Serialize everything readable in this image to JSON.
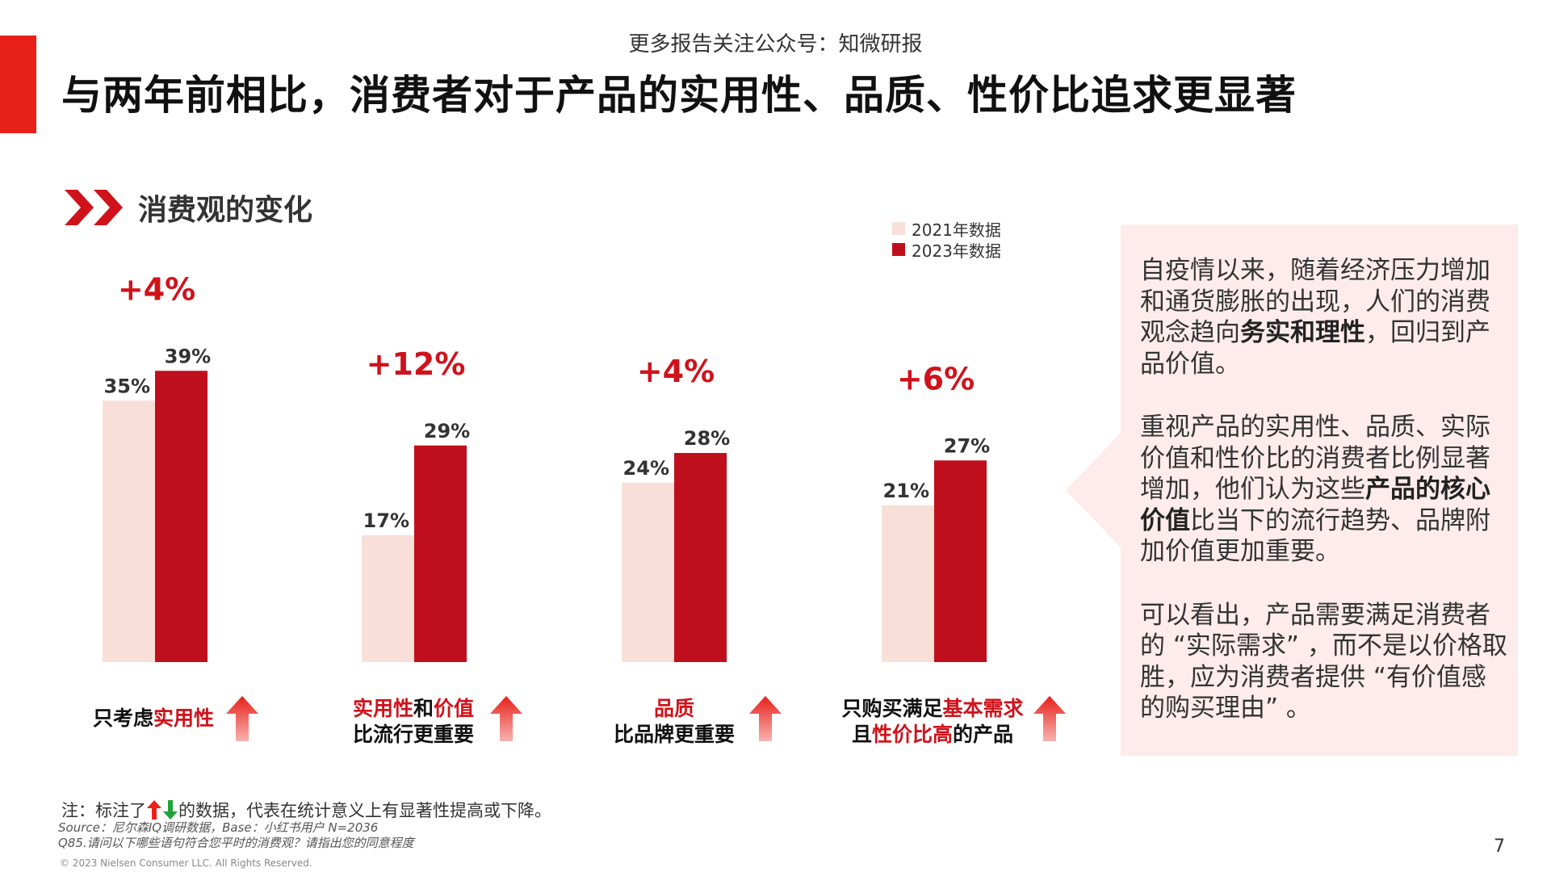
{
  "header": {
    "top_note": "更多报告关注公众号：知微研报",
    "title": "与两年前相比，消费者对于产品的实用性、品质、性价比追求更显著"
  },
  "section": {
    "title": "消费观的变化"
  },
  "colors": {
    "accent": "#e8201a",
    "series_2021": "#f8e0d8",
    "series_2023": "#c00f1c",
    "highlight": "#d0121b",
    "panel_bg": "#fdeceb"
  },
  "chart_data": {
    "type": "bar",
    "categories": [
      "只考虑实用性",
      "实用性和价值比流行更重要",
      "品质比品牌更重要",
      "只购买满足基本需求且性价比高的产品"
    ],
    "series": [
      {
        "name": "2021年数据",
        "values": [
          35,
          17,
          24,
          21
        ]
      },
      {
        "name": "2023年数据",
        "values": [
          39,
          29,
          28,
          27
        ]
      }
    ],
    "value_labels": {
      "2021": [
        "35%",
        "17%",
        "24%",
        "21%"
      ],
      "2023": [
        "39%",
        "29%",
        "28%",
        "27%"
      ]
    },
    "changes": [
      "+4%",
      "+12%",
      "+4%",
      "+6%"
    ],
    "ylim": [
      0,
      50
    ],
    "legend_position": "top-right",
    "grid": false
  },
  "category_labels": [
    {
      "lines": [
        [
          {
            "t": "只考虑",
            "hl": false
          },
          {
            "t": "实用性",
            "hl": true
          }
        ]
      ]
    },
    {
      "lines": [
        [
          {
            "t": "实用性",
            "hl": true
          },
          {
            "t": "和",
            "hl": false
          },
          {
            "t": "价值",
            "hl": true
          }
        ],
        [
          {
            "t": "比流行更重要",
            "hl": false
          }
        ]
      ]
    },
    {
      "lines": [
        [
          {
            "t": "品质",
            "hl": true
          }
        ],
        [
          {
            "t": "比品牌更重要",
            "hl": false
          }
        ]
      ]
    },
    {
      "lines": [
        [
          {
            "t": "只购买满足",
            "hl": false
          },
          {
            "t": "基本需求",
            "hl": true
          }
        ],
        [
          {
            "t": "且",
            "hl": false
          },
          {
            "t": "性价比高",
            "hl": true
          },
          {
            "t": "的产品",
            "hl": false
          }
        ]
      ]
    }
  ],
  "panel": {
    "p1_a": "自疫情以来，随着经济压力增加和通货膨胀的出现，人们的消费观念趋向",
    "p1_b": "务实和理性",
    "p1_c": "，回归到产品价值。",
    "p2_a": "重视产品的实用性、品质、实际价值和性价比的消费者比例显著增加，他们认为这些",
    "p2_b": "产品的核心价值",
    "p2_c": "比当下的流行趋势、品牌附加价值更加重要。",
    "p3": "可以看出，产品需要满足消费者的 “实际需求” ，而不是以价格取胜，应为消费者提供 “有价值感的购买理由” 。"
  },
  "footer": {
    "note_prefix": "注：标注了",
    "note_suffix": "的数据，代表在统计意义上有显著性提高或下降。",
    "source": "Source：尼尔森IQ调研数据，Base：小红书用户 N=2036",
    "question": "Q85.请问以下哪些语句符合您平时的消费观？请指出您的同意程度",
    "copyright": "© 2023 Nielsen Consumer LLC. All Rights Reserved.",
    "page_number": "7"
  }
}
